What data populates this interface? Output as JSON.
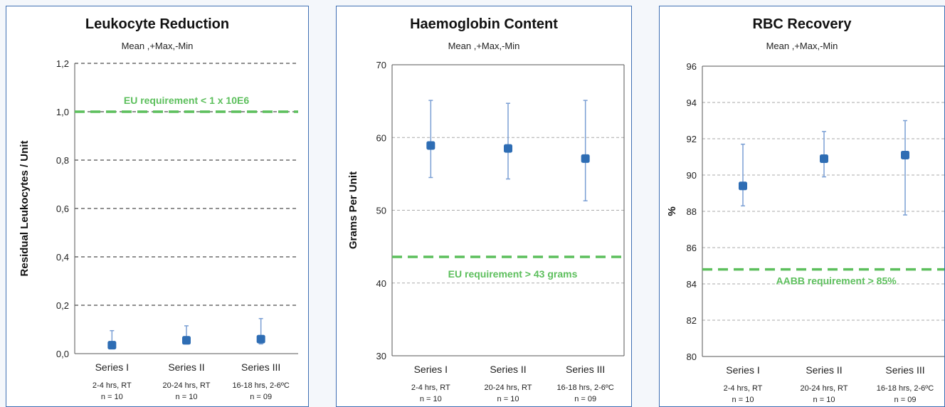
{
  "chart_data": [
    {
      "type": "scatter",
      "title": "Leukocyte Reduction",
      "subtitle": "Mean ,+Max,-Min",
      "ylabel": "Residual Leukocytes / Unit",
      "xlabel": "",
      "ylim": [
        0,
        1.2
      ],
      "y_ticks": [
        "0,0",
        "0,2",
        "0,4",
        "0,6",
        "0,8",
        "1,0",
        "1,2"
      ],
      "grid": "dashed horizontal",
      "categories": [
        {
          "label": "Series I",
          "condition": "2-4 hrs, RT",
          "n": "n = 10"
        },
        {
          "label": "Series II",
          "condition": "20-24 hrs, RT",
          "n": "n = 10"
        },
        {
          "label": "Series III",
          "condition": "16-18 hrs, 2-6ºC",
          "n": "n = 09"
        }
      ],
      "series": [
        {
          "mean": [
            0.035,
            0.055,
            0.06
          ],
          "max": [
            0.095,
            0.115,
            0.145
          ],
          "min": [
            0.02,
            0.04,
            0.04
          ]
        }
      ],
      "reference_line": {
        "value": 1.0,
        "label": "EU requirement < 1 x 10E6",
        "color": "#5cbf5c"
      },
      "marker_color": "#2e6db4",
      "errorbar_color": "#7a9fd4"
    },
    {
      "type": "scatter",
      "title": "Haemoglobin Content",
      "subtitle": "Mean ,+Max,-Min",
      "ylabel": "Grams Per Unit",
      "xlabel": "",
      "ylim": [
        30,
        70
      ],
      "y_ticks": [
        "30",
        "40",
        "50",
        "60",
        "70"
      ],
      "grid": "dashed horizontal",
      "categories": [
        {
          "label": "Series I",
          "condition": "2-4 hrs, RT",
          "n": "n = 10"
        },
        {
          "label": "Series II",
          "condition": "20-24 hrs, RT",
          "n": "n = 10"
        },
        {
          "label": "Series III",
          "condition": "16-18 hrs, 2-6ºC",
          "n": "n = 09"
        }
      ],
      "series": [
        {
          "mean": [
            58.9,
            58.5,
            57.1
          ],
          "max": [
            65.1,
            64.7,
            65.1
          ],
          "min": [
            54.5,
            54.3,
            51.3
          ]
        }
      ],
      "reference_line": {
        "value": 43.6,
        "label": "EU requirement  > 43 grams",
        "color": "#5cbf5c"
      },
      "marker_color": "#2e6db4",
      "errorbar_color": "#7a9fd4"
    },
    {
      "type": "scatter",
      "title": "RBC Recovery",
      "subtitle": "Mean ,+Max,-Min",
      "ylabel": "%",
      "xlabel": "",
      "ylim": [
        80,
        96
      ],
      "y_ticks": [
        "80",
        "82",
        "84",
        "86",
        "88",
        "90",
        "92",
        "94",
        "96"
      ],
      "grid": "dashed horizontal",
      "categories": [
        {
          "label": "Series I",
          "condition": "2-4 hrs, RT",
          "n": "n = 10"
        },
        {
          "label": "Series II",
          "condition": "20-24 hrs, RT",
          "n": "n = 10"
        },
        {
          "label": "Series III",
          "condition": "16-18 hrs, 2-6ºC",
          "n": "n = 09"
        }
      ],
      "series": [
        {
          "mean": [
            89.4,
            90.9,
            91.1
          ],
          "max": [
            91.7,
            92.4,
            93.0
          ],
          "min": [
            88.3,
            89.9,
            87.8
          ]
        }
      ],
      "reference_line": {
        "value": 84.8,
        "label": "AABB requirement > 85%",
        "color": "#5cbf5c"
      },
      "marker_color": "#2e6db4",
      "errorbar_color": "#7a9fd4"
    }
  ]
}
